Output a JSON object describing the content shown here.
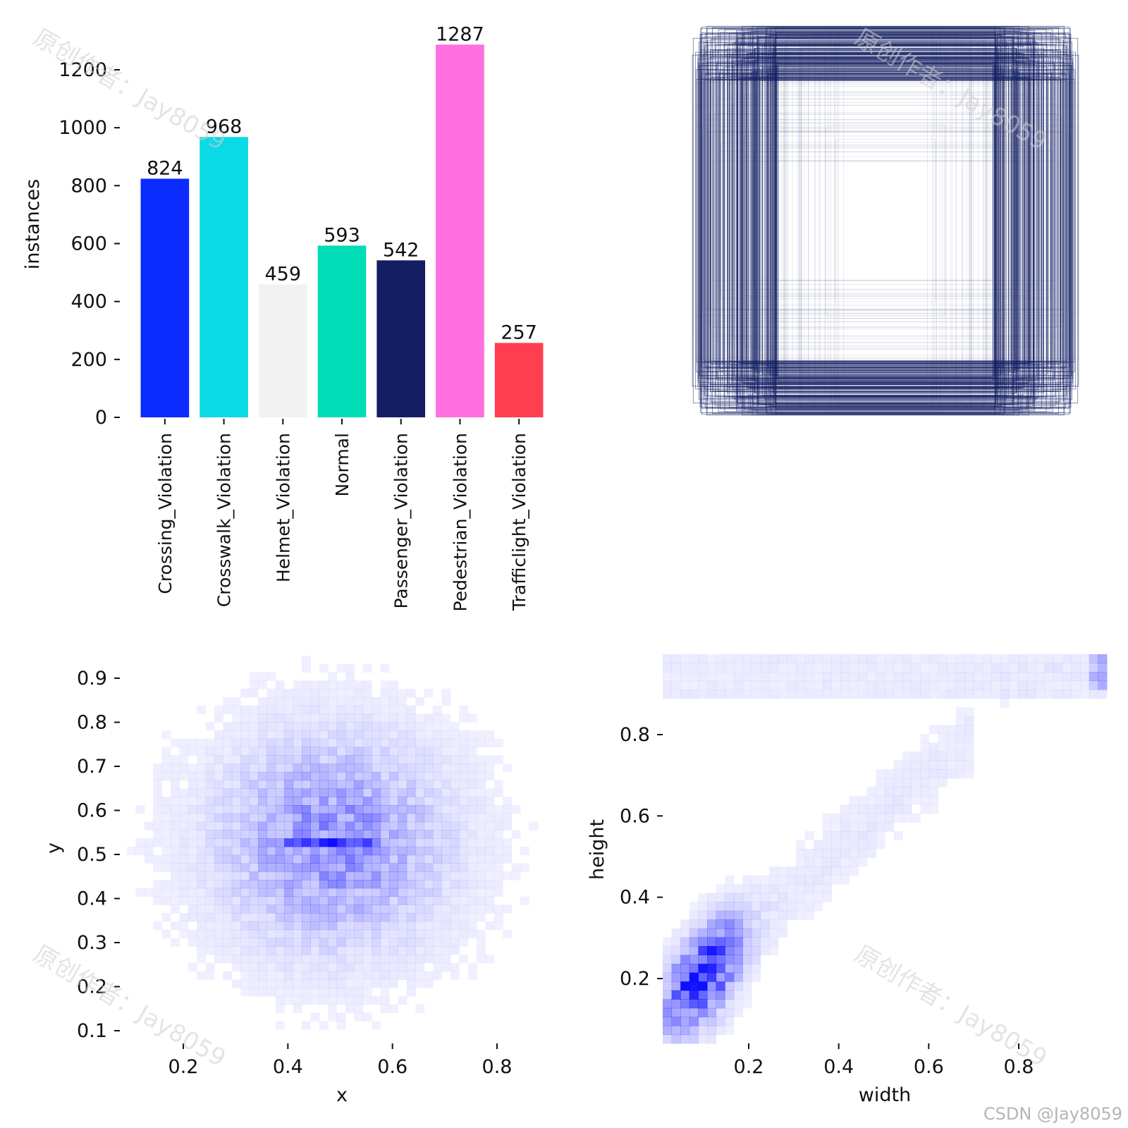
{
  "chart_data": [
    {
      "type": "bar",
      "ylabel": "instances",
      "ylim": [
        0,
        1300
      ],
      "yticks": [
        0,
        200,
        400,
        600,
        800,
        1000,
        1200
      ],
      "categories": [
        "Crossing_Violation",
        "Crosswalk_Violation",
        "Helmet_Violation",
        "Normal",
        "Passenger_Violation",
        "Pedestrian_Violation",
        "Trafficlight_Violation"
      ],
      "values": [
        824,
        968,
        459,
        593,
        542,
        1287,
        257
      ],
      "colors": [
        "#0b2bff",
        "#0ad9e6",
        "#f2f2f2",
        "#00ddb7",
        "#131e63",
        "#ff6fde",
        "#ff3f4f"
      ],
      "grid": false
    },
    {
      "type": "box_overlay",
      "description_color": "#131e63"
    },
    {
      "type": "heatmap",
      "xlabel": "x",
      "ylabel": "y",
      "xticks": [
        0.2,
        0.4,
        0.6,
        0.8
      ],
      "yticks": [
        0.1,
        0.2,
        0.3,
        0.4,
        0.5,
        0.6,
        0.7,
        0.8,
        0.9
      ],
      "xlim": [
        0.1,
        0.95
      ],
      "ylim": [
        0.05,
        0.95
      ],
      "peak": [
        0.5,
        0.5
      ],
      "color": "#0000ff"
    },
    {
      "type": "heatmap",
      "xlabel": "width",
      "ylabel": "height",
      "xticks": [
        0.2,
        0.4,
        0.6,
        0.8
      ],
      "yticks": [
        0.2,
        0.4,
        0.6,
        0.8
      ],
      "xlim": [
        0.0,
        1.0
      ],
      "ylim": [
        0.0,
        1.0
      ],
      "peak": [
        0.09,
        0.15
      ],
      "color": "#0000ff"
    }
  ],
  "watermarks": [
    "原创作者：Jay8059",
    "原创作者：Jay8059",
    "原创作者：Jay8059",
    "原创作者：Jay8059"
  ],
  "credit": "CSDN @Jay8059"
}
